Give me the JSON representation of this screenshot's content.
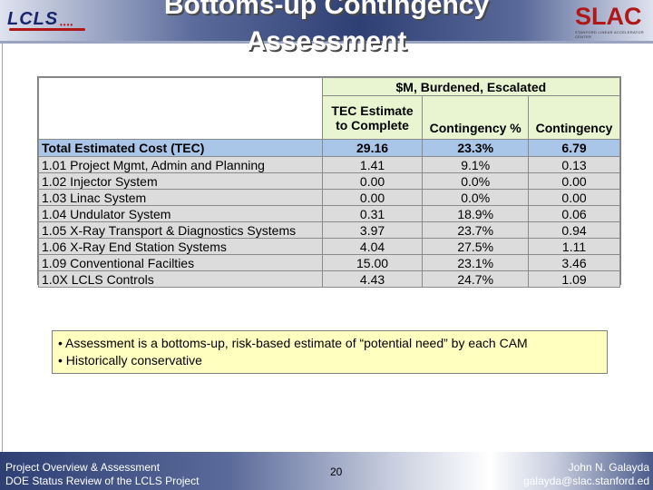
{
  "header": {
    "title": "Bottoms-up Contingency Assessment",
    "left_logo": "LCLS",
    "right_logo": "SLAC",
    "right_logo_sub": "STANFORD LINEAR ACCELERATOR CENTER"
  },
  "table": {
    "group_header": "$M, Burdened, Escalated",
    "columns": [
      "TEC Estimate to Complete",
      "Contingency %",
      "Contingency"
    ],
    "total_row": {
      "label": "Total Estimated Cost (TEC)",
      "values": [
        "29.16",
        "23.3%",
        "6.79"
      ]
    },
    "rows": [
      {
        "label": "1.01 Project Mgmt, Admin and Planning",
        "values": [
          "1.41",
          "9.1%",
          "0.13"
        ]
      },
      {
        "label": "1.02 Injector System",
        "values": [
          "0.00",
          "0.0%",
          "0.00"
        ]
      },
      {
        "label": "1.03 Linac System",
        "values": [
          "0.00",
          "0.0%",
          "0.00"
        ]
      },
      {
        "label": "1.04 Undulator System",
        "values": [
          "0.31",
          "18.9%",
          "0.06"
        ]
      },
      {
        "label": "1.05 X-Ray Transport & Diagnostics Systems",
        "values": [
          "3.97",
          "23.7%",
          "0.94"
        ]
      },
      {
        "label": "1.06 X-Ray End Station Systems",
        "values": [
          "4.04",
          "27.5%",
          "1.11"
        ]
      },
      {
        "label": "1.09 Conventional Facilties",
        "values": [
          "15.00",
          "23.1%",
          "3.46"
        ]
      },
      {
        "label": "1.0X LCLS Controls",
        "values": [
          "4.43",
          "24.7%",
          "1.09"
        ]
      }
    ]
  },
  "notes": [
    "• Assessment is a bottoms-up, risk-based estimate of “potential need” by each CAM",
    "• Historically conservative"
  ],
  "footer": {
    "left_line1": "Project Overview & Assessment",
    "left_line2": "DOE Status Review of the LCLS Project",
    "page_number": "20",
    "right_line1": "John N. Galayda",
    "right_line2": "galayda@slac.stanford.ed"
  }
}
